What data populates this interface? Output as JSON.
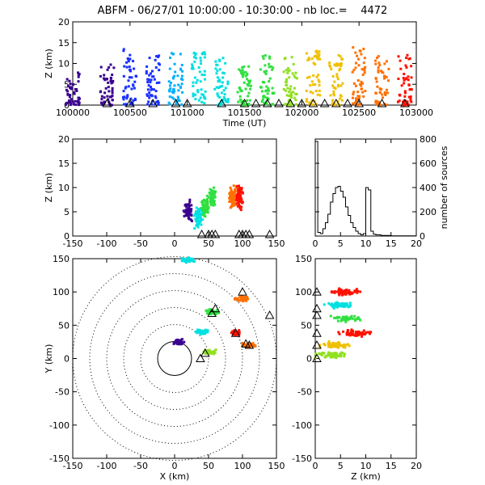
{
  "title": "ABFM - 06/27/01 10:00:00 - 10:30:00 - nb loc.=    4472",
  "colors": {
    "rainbow": [
      "#000000",
      "#3a0090",
      "#1a30ff",
      "#00b0ff",
      "#00e0e0",
      "#30e040",
      "#90e020",
      "#f0c000",
      "#ff7000",
      "#ff1000"
    ],
    "triangle": "#000000",
    "axes": "#000000"
  },
  "chart_data": [
    {
      "id": "time-height",
      "type": "scatter",
      "xlabel": "Time (UT)",
      "ylabel": "Z (km)",
      "xlim": [
        100000,
        103000
      ],
      "ylim": [
        0,
        20
      ],
      "xticks": [
        "100000",
        "100500",
        "101000",
        "101500",
        "102000",
        "102500",
        "103000"
      ],
      "yticks": [
        "0",
        "5",
        "10",
        "15",
        "20"
      ],
      "stroke_columns": [
        {
          "t": 100000,
          "z": [
            0,
            8
          ]
        },
        {
          "t": 100300,
          "z": [
            0,
            10
          ]
        },
        {
          "t": 100500,
          "z": [
            0,
            14
          ]
        },
        {
          "t": 100700,
          "z": [
            0,
            12
          ]
        },
        {
          "t": 100900,
          "z": [
            0,
            13
          ]
        },
        {
          "t": 101100,
          "z": [
            0,
            14
          ]
        },
        {
          "t": 101300,
          "z": [
            0,
            12
          ]
        },
        {
          "t": 101500,
          "z": [
            0,
            10
          ]
        },
        {
          "t": 101700,
          "z": [
            0,
            12
          ]
        },
        {
          "t": 101900,
          "z": [
            0,
            12
          ]
        },
        {
          "t": 102100,
          "z": [
            0,
            13
          ]
        },
        {
          "t": 102300,
          "z": [
            0,
            12
          ]
        },
        {
          "t": 102500,
          "z": [
            0,
            14
          ]
        },
        {
          "t": 102700,
          "z": [
            0,
            12
          ]
        },
        {
          "t": 102900,
          "z": [
            0,
            12
          ]
        }
      ],
      "ground_triangles_t": [
        100300,
        100500,
        100700,
        100900,
        101000,
        101300,
        101500,
        101600,
        101700,
        101800,
        101900,
        102000,
        102100,
        102200,
        102300,
        102400,
        102500,
        102700,
        102900
      ]
    },
    {
      "id": "x-z",
      "type": "scatter",
      "xlabel": "",
      "ylabel": "Z (km)",
      "xlim": [
        -150,
        150
      ],
      "ylim": [
        0,
        20
      ],
      "xticks": [
        "-150",
        "-100",
        "-50",
        "0",
        "50",
        "100",
        "150"
      ],
      "yticks": [
        "0",
        "5",
        "10",
        "15",
        "20"
      ],
      "clusters": [
        {
          "x": 20,
          "z": 5,
          "c": 1
        },
        {
          "x": 35,
          "z": 4,
          "c": 4
        },
        {
          "x": 45,
          "z": 6,
          "c": 5
        },
        {
          "x": 55,
          "z": 8,
          "c": 5
        },
        {
          "x": 85,
          "z": 8,
          "c": 8
        },
        {
          "x": 95,
          "z": 8,
          "c": 9
        }
      ],
      "ground_triangles_x": [
        40,
        50,
        55,
        60,
        95,
        100,
        105,
        110,
        140
      ]
    },
    {
      "id": "z-histogram",
      "type": "line",
      "xlabel": "",
      "ylabel": "number of sources",
      "xlim": [
        0,
        20
      ],
      "ylim": [
        0,
        800
      ],
      "xticks": [
        "0",
        "5",
        "10",
        "15",
        "20"
      ],
      "yticks": [
        "0",
        "200",
        "400",
        "600",
        "800"
      ],
      "x": [
        0,
        0.5,
        1,
        1.5,
        2,
        2.5,
        3,
        3.5,
        4,
        4.5,
        5,
        5.5,
        6,
        6.5,
        7,
        7.5,
        8,
        8.5,
        9,
        9.5,
        10,
        10.5,
        11,
        11.5,
        12,
        13,
        14,
        15,
        20
      ],
      "values": [
        780,
        30,
        20,
        60,
        110,
        180,
        280,
        350,
        400,
        410,
        370,
        320,
        240,
        170,
        110,
        70,
        40,
        20,
        10,
        20,
        400,
        380,
        40,
        15,
        10,
        5,
        5,
        2,
        0
      ]
    },
    {
      "id": "plan-view",
      "type": "scatter",
      "xlabel": "X (km)",
      "ylabel": "Y (km)",
      "xlim": [
        -150,
        150
      ],
      "ylim": [
        -150,
        150
      ],
      "xticks": [
        "-150",
        "-100",
        "-50",
        "0",
        "50",
        "100",
        "150"
      ],
      "yticks": [
        "-150",
        "-100",
        "-50",
        "0",
        "50",
        "100",
        "150"
      ],
      "range_rings_km": [
        25,
        50,
        75,
        100,
        125,
        150
      ],
      "clusters": [
        {
          "x": 5,
          "y": 25,
          "c": 1
        },
        {
          "x": 20,
          "y": 148,
          "c": 4
        },
        {
          "x": 40,
          "y": 40,
          "c": 4
        },
        {
          "x": 55,
          "y": 70,
          "c": 5
        },
        {
          "x": 90,
          "y": 38,
          "c": 9
        },
        {
          "x": 100,
          "y": 90,
          "c": 8
        },
        {
          "x": 110,
          "y": 20,
          "c": 8
        },
        {
          "x": 50,
          "y": 10,
          "c": 6
        }
      ],
      "triangles": [
        {
          "x": 38,
          "y": 0
        },
        {
          "x": 45,
          "y": 8
        },
        {
          "x": 55,
          "y": 68
        },
        {
          "x": 60,
          "y": 75
        },
        {
          "x": 90,
          "y": 38
        },
        {
          "x": 105,
          "y": 22
        },
        {
          "x": 110,
          "y": 20
        },
        {
          "x": 100,
          "y": 100
        },
        {
          "x": 140,
          "y": 65
        }
      ]
    },
    {
      "id": "z-y",
      "type": "scatter",
      "xlabel": "Z (km)",
      "ylabel": "",
      "xlim": [
        0,
        20
      ],
      "ylim": [
        -150,
        150
      ],
      "xticks": [
        "0",
        "5",
        "10",
        "15",
        "20"
      ],
      "yticks": [
        "-150",
        "-100",
        "-50",
        "0",
        "50",
        "100",
        "150"
      ],
      "clusters": [
        {
          "z": 6,
          "y": 100,
          "c": 9
        },
        {
          "z": 5,
          "y": 80,
          "c": 4
        },
        {
          "z": 6,
          "y": 60,
          "c": 5
        },
        {
          "z": 8,
          "y": 38,
          "c": 9
        },
        {
          "z": 4,
          "y": 20,
          "c": 7
        },
        {
          "z": 3,
          "y": 5,
          "c": 6
        }
      ],
      "ground_triangles_y": [
        0,
        20,
        38,
        65,
        75,
        100
      ]
    }
  ]
}
